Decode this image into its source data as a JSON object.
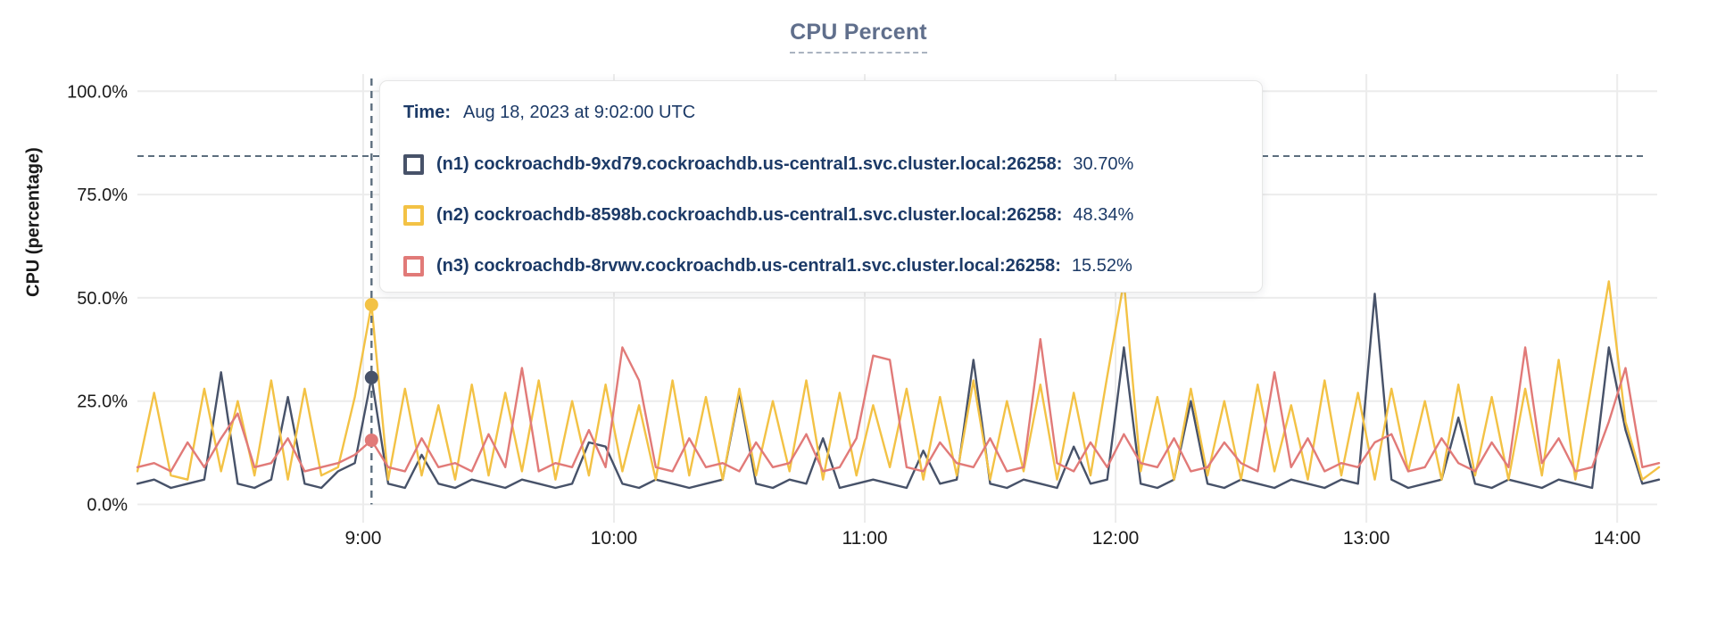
{
  "title": "CPU Percent",
  "colors": {
    "n1": "#475269",
    "n2": "#f3c245",
    "n3": "#e17a78",
    "hover_dashed": "#5c6e7e",
    "threshold_dashed": "#5c6e7e",
    "grid": "#ececec",
    "axis_text": "#1a1a1a",
    "title_text": "#606f8c",
    "title_underline": "#aab3c0",
    "tooltip_text": "#1c3a67"
  },
  "yaxis": {
    "label": "CPU (percentage)",
    "ticks": [
      "100.0%",
      "75.0%",
      "50.0%",
      "25.0%",
      "0.0%"
    ],
    "tick_values": [
      100,
      75,
      50,
      25,
      0
    ]
  },
  "xaxis": {
    "ticks": [
      "9:00",
      "10:00",
      "11:00",
      "12:00",
      "13:00",
      "14:00"
    ],
    "tick_hours": [
      9,
      10,
      11,
      12,
      13,
      14
    ]
  },
  "tooltip": {
    "time_label": "Time:",
    "time_value": "Aug 18, 2023 at 9:02:00 UTC",
    "rows": [
      {
        "id": "n1",
        "name": "(n1) cockroachdb-9xd79.cockroachdb.us-central1.svc.cluster.local:26258:",
        "value": "30.70%"
      },
      {
        "id": "n2",
        "name": "(n2) cockroachdb-8598b.cockroachdb.us-central1.svc.cluster.local:26258:",
        "value": "48.34%"
      },
      {
        "id": "n3",
        "name": "(n3) cockroachdb-8rvwv.cockroachdb.us-central1.svc.cluster.local:26258:",
        "value": "15.52%"
      }
    ]
  },
  "chart_data": {
    "type": "line",
    "title": "CPU Percent",
    "ylabel": "CPU (percentage)",
    "ylim": [
      0,
      100
    ],
    "grid": true,
    "legend_position": "none (values shown in hover tooltip)",
    "x_start": "08:06",
    "x_end": "14:10",
    "x_step_minutes": 4,
    "x_domain_minutes": [
      486,
      850
    ],
    "threshold_percent": 84.3,
    "hover": {
      "time": "9:02",
      "minutes": 542,
      "points": [
        {
          "series": "n2",
          "value": 48.34
        },
        {
          "series": "n1",
          "value": 30.7
        },
        {
          "series": "n3",
          "value": 15.52
        }
      ]
    },
    "series": [
      {
        "id": "n1",
        "name": "(n1) cockroachdb-9xd79.cockroachdb.us-central1.svc.cluster.local:26258",
        "color": "#475269",
        "values": [
          5,
          6,
          4,
          5,
          6,
          32,
          5,
          4,
          6,
          26,
          5,
          4,
          8,
          10,
          30.7,
          5,
          4,
          12,
          5,
          4,
          6,
          5,
          4,
          6,
          5,
          4,
          5,
          15,
          14,
          5,
          4,
          6,
          5,
          4,
          5,
          6,
          27,
          5,
          4,
          6,
          5,
          16,
          4,
          5,
          6,
          5,
          4,
          13,
          5,
          6,
          35,
          5,
          4,
          6,
          5,
          4,
          14,
          5,
          6,
          38,
          5,
          4,
          6,
          25,
          5,
          4,
          6,
          5,
          4,
          6,
          5,
          4,
          6,
          5,
          51,
          6,
          4,
          5,
          6,
          21,
          5,
          4,
          6,
          5,
          4,
          6,
          5,
          4,
          38,
          18,
          5,
          6
        ]
      },
      {
        "id": "n2",
        "name": "(n2) cockroachdb-8598b.cockroachdb.us-central1.svc.cluster.local:26258",
        "color": "#f3c245",
        "values": [
          8,
          27,
          7,
          6,
          28,
          8,
          25,
          7,
          30,
          6,
          28,
          7,
          9,
          26,
          48.34,
          6,
          28,
          7,
          24,
          6,
          29,
          7,
          27,
          8,
          30,
          6,
          25,
          7,
          29,
          8,
          24,
          6,
          30,
          7,
          26,
          6,
          28,
          7,
          25,
          8,
          30,
          6,
          27,
          7,
          24,
          9,
          28,
          6,
          26,
          7,
          30,
          6,
          25,
          8,
          29,
          6,
          27,
          7,
          31,
          54,
          8,
          26,
          6,
          28,
          7,
          25,
          6,
          29,
          8,
          24,
          6,
          30,
          7,
          27,
          6,
          28,
          8,
          25,
          6,
          29,
          7,
          26,
          6,
          28,
          7,
          35,
          6,
          30,
          54,
          20,
          6,
          9
        ]
      },
      {
        "id": "n3",
        "name": "(n3) cockroachdb-8rvwv.cockroachdb.us-central1.svc.cluster.local:26258",
        "color": "#e17a78",
        "values": [
          9,
          10,
          8,
          15,
          9,
          16,
          22,
          9,
          10,
          16,
          8,
          9,
          10,
          12,
          15.52,
          9,
          8,
          16,
          9,
          10,
          8,
          17,
          9,
          33,
          8,
          10,
          9,
          18,
          9,
          38,
          30,
          9,
          8,
          16,
          9,
          10,
          8,
          15,
          9,
          10,
          17,
          8,
          9,
          16,
          36,
          35,
          9,
          8,
          15,
          10,
          9,
          16,
          8,
          9,
          40,
          10,
          8,
          15,
          9,
          17,
          10,
          9,
          16,
          8,
          9,
          15,
          10,
          8,
          32,
          9,
          16,
          8,
          10,
          9,
          15,
          17,
          8,
          9,
          16,
          10,
          8,
          15,
          9,
          38,
          10,
          16,
          8,
          9,
          20,
          33,
          9,
          10
        ]
      }
    ]
  }
}
